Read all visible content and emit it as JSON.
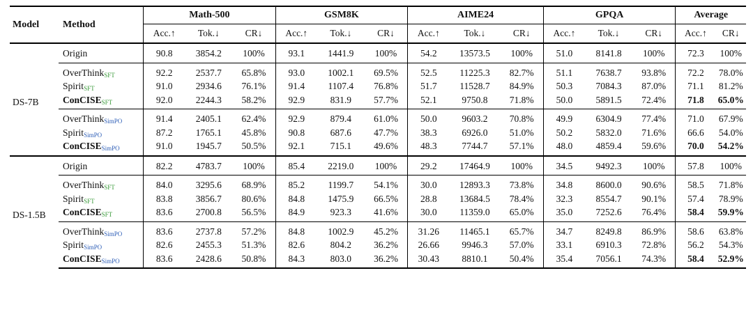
{
  "header": {
    "model": "Model",
    "method": "Method",
    "datasets": [
      "Math-500",
      "GSM8K",
      "AIME24",
      "GPQA",
      "Average"
    ],
    "metrics": [
      "Acc.↑",
      "Tok.↓",
      "CR↓"
    ]
  },
  "colors": {
    "sft_subscript": "#3a9a3a",
    "simpo_subscript": "#3060b8"
  },
  "models": [
    {
      "name": "DS-7B",
      "origin": {
        "name": "Origin",
        "values": [
          "90.8",
          "3854.2",
          "100%",
          "93.1",
          "1441.9",
          "100%",
          "54.2",
          "13573.5",
          "100%",
          "51.0",
          "8141.8",
          "100%",
          "72.3",
          "100%"
        ]
      },
      "groups": [
        {
          "suffix": "SFT",
          "rows": [
            {
              "name": "OverThink",
              "values": [
                "92.2",
                "2537.7",
                "65.8%",
                "93.0",
                "1002.1",
                "69.5%",
                "52.5",
                "11225.3",
                "82.7%",
                "51.1",
                "7638.7",
                "93.8%",
                "72.2",
                "78.0%"
              ]
            },
            {
              "name": "Spirit",
              "values": [
                "91.0",
                "2934.6",
                "76.1%",
                "91.4",
                "1107.4",
                "76.8%",
                "51.7",
                "11528.7",
                "84.9%",
                "50.3",
                "7084.3",
                "87.0%",
                "71.1",
                "81.2%"
              ]
            },
            {
              "name": "ConCISE",
              "values": [
                "92.0",
                "2244.3",
                "58.2%",
                "92.9",
                "831.9",
                "57.7%",
                "52.1",
                "9750.8",
                "71.8%",
                "50.0",
                "5891.5",
                "72.4%",
                "71.8",
                "65.0%"
              ]
            }
          ]
        },
        {
          "suffix": "SimPO",
          "rows": [
            {
              "name": "OverThink",
              "values": [
                "91.4",
                "2405.1",
                "62.4%",
                "92.9",
                "879.4",
                "61.0%",
                "50.0",
                "9603.2",
                "70.8%",
                "49.9",
                "6304.9",
                "77.4%",
                "71.0",
                "67.9%"
              ]
            },
            {
              "name": "Spirit",
              "values": [
                "87.2",
                "1765.1",
                "45.8%",
                "90.8",
                "687.6",
                "47.7%",
                "38.3",
                "6926.0",
                "51.0%",
                "50.2",
                "5832.0",
                "71.6%",
                "66.6",
                "54.0%"
              ]
            },
            {
              "name": "ConCISE",
              "values": [
                "91.0",
                "1945.7",
                "50.5%",
                "92.1",
                "715.1",
                "49.6%",
                "48.3",
                "7744.7",
                "57.1%",
                "48.0",
                "4859.4",
                "59.6%",
                "70.0",
                "54.2%"
              ]
            }
          ]
        }
      ]
    },
    {
      "name": "DS-1.5B",
      "origin": {
        "name": "Origin",
        "values": [
          "82.2",
          "4783.7",
          "100%",
          "85.4",
          "2219.0",
          "100%",
          "29.2",
          "17464.9",
          "100%",
          "34.5",
          "9492.3",
          "100%",
          "57.8",
          "100%"
        ]
      },
      "groups": [
        {
          "suffix": "SFT",
          "rows": [
            {
              "name": "OverThink",
              "values": [
                "84.0",
                "3295.6",
                "68.9%",
                "85.2",
                "1199.7",
                "54.1%",
                "30.0",
                "12893.3",
                "73.8%",
                "34.8",
                "8600.0",
                "90.6%",
                "58.5",
                "71.8%"
              ]
            },
            {
              "name": "Spirit",
              "values": [
                "83.8",
                "3856.7",
                "80.6%",
                "84.8",
                "1475.9",
                "66.5%",
                "28.8",
                "13684.5",
                "78.4%",
                "32.3",
                "8554.7",
                "90.1%",
                "57.4",
                "78.9%"
              ]
            },
            {
              "name": "ConCISE",
              "values": [
                "83.6",
                "2700.8",
                "56.5%",
                "84.9",
                "923.3",
                "41.6%",
                "30.0",
                "11359.0",
                "65.0%",
                "35.0",
                "7252.6",
                "76.4%",
                "58.4",
                "59.9%"
              ]
            }
          ]
        },
        {
          "suffix": "SimPO",
          "rows": [
            {
              "name": "OverThink",
              "values": [
                "83.6",
                "2737.8",
                "57.2%",
                "84.8",
                "1002.9",
                "45.2%",
                "31.26",
                "11465.1",
                "65.7%",
                "34.7",
                "8249.8",
                "86.9%",
                "58.6",
                "63.8%"
              ]
            },
            {
              "name": "Spirit",
              "values": [
                "82.6",
                "2455.3",
                "51.3%",
                "82.6",
                "804.2",
                "36.2%",
                "26.66",
                "9946.3",
                "57.0%",
                "33.1",
                "6910.3",
                "72.8%",
                "56.2",
                "54.3%"
              ]
            },
            {
              "name": "ConCISE",
              "values": [
                "83.6",
                "2428.6",
                "50.8%",
                "84.3",
                "803.0",
                "36.2%",
                "30.43",
                "8810.1",
                "50.4%",
                "35.4",
                "7056.1",
                "74.3%",
                "58.4",
                "52.9%"
              ]
            }
          ]
        }
      ]
    }
  ]
}
